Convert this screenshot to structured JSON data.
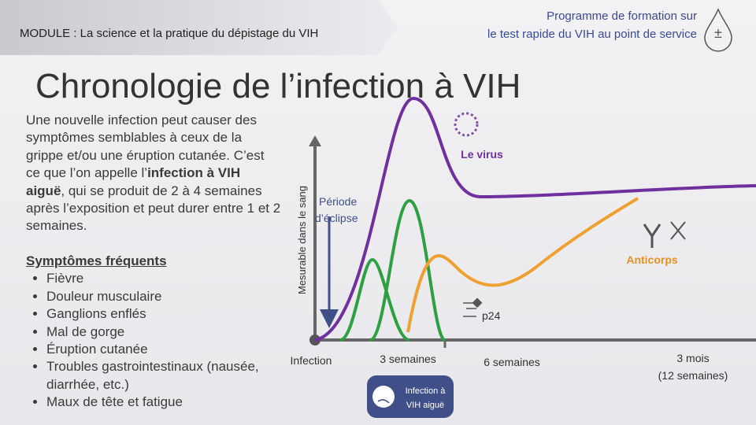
{
  "header": {
    "module": "MODULE : La science et la pratique du dépistage du VIH",
    "program": [
      "Programme de formation sur",
      "le test rapide du VIH au point de service"
    ],
    "icon": "±"
  },
  "title": "Chronologie de l’infection à VIH",
  "intro": [
    "Une nouvelle infection peut causer des symptômes semblables à ceux de la grippe et/ou une éruption cutanée. C’est ce que l’on appelle l’",
    "infection à VIH aiguë",
    ", qui se produit de 2 à 4 semaines après l’exposition et peut durer entre 1 et 2 semaines."
  ],
  "symptoms": {
    "heading": "Symptômes fréquents",
    "items": [
      "Fièvre",
      "Douleur musculaire",
      "Ganglions enflés",
      "Mal de gorge",
      "Éruption cutanée",
      "Troubles gastrointestinaux (nausée, diarrhée, etc.)",
      "Maux de tête et fatigue"
    ]
  },
  "diagram": {
    "y_axis_label": "Mesurable dans le sang",
    "eclipse": [
      "Période",
      "d’éclipse"
    ],
    "virus": "Le virus",
    "antibodies": "Anticorps",
    "p24": "p24",
    "timeline": [
      "Infection",
      "3 semaines",
      "6 semaines",
      "3 mois",
      "(12 semaines)"
    ],
    "acute_box": [
      "Infection à",
      "VIH aiguë"
    ]
  }
}
